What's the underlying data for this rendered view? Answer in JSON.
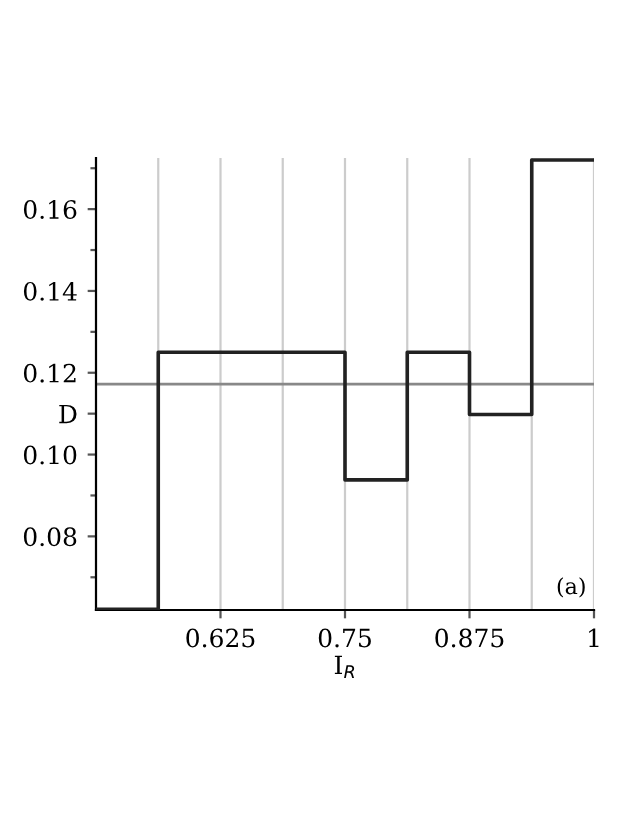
{
  "chart_data": {
    "type": "step",
    "xlabel": "I$_{R}$",
    "x": [
      0.5,
      0.5625,
      0.75,
      0.8125,
      0.875,
      0.9375,
      1
    ],
    "series": [
      {
        "color": "#222222",
        "values": [
          0.0622,
          0.125,
          0.0938,
          0.125,
          0.1098,
          0.172,
          0.172
        ]
      }
    ],
    "xlim": [
      0.5,
      1
    ],
    "xticks": [
      {
        "value": 0.5625,
        "label": null
      },
      0.625,
      {
        "value": 0.6875,
        "label": null
      },
      0.75,
      {
        "value": 0.8125,
        "label": null
      },
      0.875,
      {
        "value": 0.9375,
        "label": null
      },
      1
    ],
    "ylim": [
      0.062,
      0.1725
    ],
    "yticks": [
      {
        "value": 0.07,
        "label": null
      },
      0.08,
      {
        "value": 0.09,
        "label": null
      },
      {
        "value": 0.1,
        "label": "0.10"
      },
      {
        "value": 0.11,
        "label": "D"
      },
      0.12,
      {
        "value": 0.13,
        "label": null
      },
      0.14,
      {
        "value": 0.15,
        "label": null
      },
      0.16,
      {
        "value": 0.17,
        "label": null
      }
    ],
    "ref_lines": [
      {
        "axis": "y",
        "value": 0.1172,
        "color": "#888888"
      }
    ],
    "annotations": [
      "(a)"
    ],
    "grid": "x",
    "legend": false
  }
}
